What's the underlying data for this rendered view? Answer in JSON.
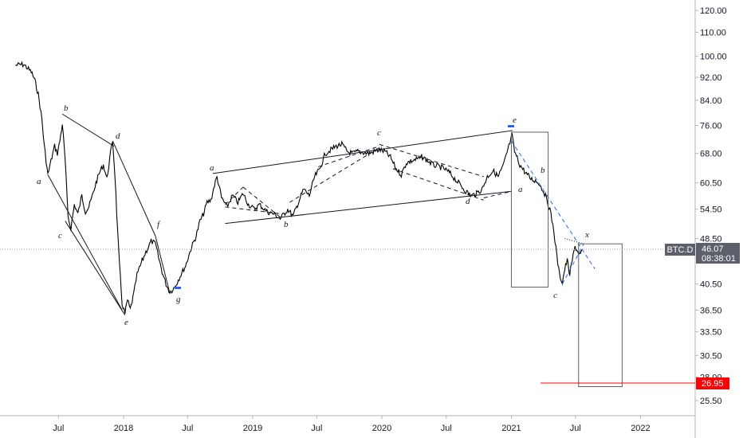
{
  "chart_data": {
    "type": "line",
    "symbol": "BTC.D",
    "y_scale": "log",
    "ylim": [
      23.5,
      128
    ],
    "y_ticks": [
      "120.00",
      "110.00",
      "100.00",
      "92.00",
      "84.00",
      "76.00",
      "68.00",
      "60.50",
      "54.50",
      "48.50",
      "40.50",
      "36.50",
      "33.50",
      "30.50",
      "28.00",
      "25.50"
    ],
    "x_ticks": [
      "Jul",
      "2018",
      "Jul",
      "2019",
      "Jul",
      "2020",
      "Jul",
      "2021",
      "Jul",
      "2022"
    ],
    "last_price": {
      "value": "46.07",
      "countdown": "08:38:01",
      "color": "#131722"
    },
    "target_price": {
      "value": "26.95",
      "color": "#ff0000"
    },
    "wave_labels": [
      "a",
      "b",
      "c",
      "d",
      "e",
      "f",
      "g",
      "a",
      "b",
      "c",
      "d",
      "e",
      "a",
      "b",
      "c",
      "x"
    ],
    "price_path": [
      [
        "2017-03-01",
        96.5
      ],
      [
        "2017-03-25",
        96.8
      ],
      [
        "2017-04-15",
        94.0
      ],
      [
        "2017-04-25",
        91.0
      ],
      [
        "2017-05-05",
        86.0
      ],
      [
        "2017-05-15",
        78.0
      ],
      [
        "2017-05-22",
        70.0
      ],
      [
        "2017-06-01",
        62.5
      ],
      [
        "2017-06-10",
        66.0
      ],
      [
        "2017-06-20",
        70.0
      ],
      [
        "2017-06-28",
        68.0
      ],
      [
        "2017-07-05",
        71.5
      ],
      [
        "2017-07-12",
        76.5
      ],
      [
        "2017-07-20",
        66.0
      ],
      [
        "2017-07-28",
        53.0
      ],
      [
        "2017-08-05",
        50.5
      ],
      [
        "2017-08-15",
        55.5
      ],
      [
        "2017-08-25",
        53.5
      ],
      [
        "2017-09-05",
        57.5
      ],
      [
        "2017-09-15",
        54.0
      ],
      [
        "2017-09-25",
        55.0
      ],
      [
        "2017-10-05",
        57.5
      ],
      [
        "2017-10-15",
        60.5
      ],
      [
        "2017-10-25",
        63.0
      ],
      [
        "2017-11-05",
        65.0
      ],
      [
        "2017-11-15",
        61.5
      ],
      [
        "2017-11-25",
        68.0
      ],
      [
        "2017-12-01",
        71.5
      ],
      [
        "2017-12-08",
        62.0
      ],
      [
        "2017-12-15",
        50.0
      ],
      [
        "2017-12-20",
        44.0
      ],
      [
        "2017-12-28",
        37.5
      ],
      [
        "2018-01-05",
        36.0
      ],
      [
        "2018-01-12",
        38.0
      ],
      [
        "2018-01-20",
        36.6
      ],
      [
        "2018-01-30",
        39.0
      ],
      [
        "2018-02-08",
        42.0
      ],
      [
        "2018-02-20",
        44.0
      ],
      [
        "2018-03-05",
        46.0
      ],
      [
        "2018-03-20",
        48.0
      ],
      [
        "2018-04-01",
        47.5
      ],
      [
        "2018-04-10",
        45.0
      ],
      [
        "2018-04-20",
        42.5
      ],
      [
        "2018-05-01",
        40.5
      ],
      [
        "2018-05-12",
        39.2
      ],
      [
        "2018-05-25",
        40.0
      ],
      [
        "2018-06-10",
        41.8
      ],
      [
        "2018-06-25",
        43.5
      ],
      [
        "2018-07-10",
        46.5
      ],
      [
        "2018-07-25",
        49.0
      ],
      [
        "2018-08-05",
        52.0
      ],
      [
        "2018-08-15",
        53.5
      ],
      [
        "2018-08-25",
        56.0
      ],
      [
        "2018-09-05",
        56.5
      ],
      [
        "2018-09-15",
        60.0
      ],
      [
        "2018-09-22",
        62.0
      ],
      [
        "2018-10-05",
        57.0
      ],
      [
        "2018-10-20",
        55.0
      ],
      [
        "2018-11-05",
        57.5
      ],
      [
        "2018-11-20",
        56.0
      ],
      [
        "2018-12-05",
        58.0
      ],
      [
        "2018-12-20",
        55.5
      ],
      [
        "2019-01-05",
        54.5
      ],
      [
        "2019-01-20",
        55.5
      ],
      [
        "2019-02-10",
        54.0
      ],
      [
        "2019-03-01",
        53.5
      ],
      [
        "2019-03-20",
        52.5
      ],
      [
        "2019-04-10",
        54.5
      ],
      [
        "2019-04-25",
        53.0
      ],
      [
        "2019-05-10",
        56.0
      ],
      [
        "2019-05-25",
        59.0
      ],
      [
        "2019-06-10",
        57.5
      ],
      [
        "2019-06-25",
        62.0
      ],
      [
        "2019-07-10",
        64.0
      ],
      [
        "2019-07-25",
        68.0
      ],
      [
        "2019-08-10",
        69.0
      ],
      [
        "2019-08-25",
        70.0
      ],
      [
        "2019-09-10",
        70.5
      ],
      [
        "2019-09-25",
        68.5
      ],
      [
        "2019-10-10",
        68.0
      ],
      [
        "2019-10-25",
        68.5
      ],
      [
        "2019-11-10",
        68.3
      ],
      [
        "2019-11-25",
        68.0
      ],
      [
        "2019-12-10",
        68.5
      ],
      [
        "2019-12-25",
        69.0
      ],
      [
        "2020-01-10",
        68.5
      ],
      [
        "2020-01-25",
        67.0
      ],
      [
        "2020-02-10",
        64.0
      ],
      [
        "2020-02-25",
        62.5
      ],
      [
        "2020-03-10",
        65.5
      ],
      [
        "2020-03-25",
        66.0
      ],
      [
        "2020-04-10",
        66.5
      ],
      [
        "2020-04-25",
        67.0
      ],
      [
        "2020-05-10",
        66.0
      ],
      [
        "2020-05-25",
        65.0
      ],
      [
        "2020-06-10",
        64.5
      ],
      [
        "2020-06-25",
        64.0
      ],
      [
        "2020-07-10",
        63.0
      ],
      [
        "2020-07-25",
        61.5
      ],
      [
        "2020-08-10",
        60.0
      ],
      [
        "2020-08-25",
        58.5
      ],
      [
        "2020-09-10",
        57.5
      ],
      [
        "2020-09-25",
        58.0
      ],
      [
        "2020-10-10",
        59.0
      ],
      [
        "2020-10-25",
        62.0
      ],
      [
        "2020-11-10",
        63.5
      ],
      [
        "2020-11-25",
        62.0
      ],
      [
        "2020-12-10",
        65.0
      ],
      [
        "2020-12-25",
        70.0
      ],
      [
        "2021-01-03",
        73.0
      ],
      [
        "2021-01-10",
        68.5
      ],
      [
        "2021-01-25",
        65.0
      ],
      [
        "2021-02-10",
        63.0
      ],
      [
        "2021-02-25",
        61.5
      ],
      [
        "2021-03-10",
        61.0
      ],
      [
        "2021-03-20",
        60.5
      ],
      [
        "2021-04-05",
        58.0
      ],
      [
        "2021-04-20",
        54.5
      ],
      [
        "2021-05-01",
        50.0
      ],
      [
        "2021-05-10",
        45.0
      ],
      [
        "2021-05-17",
        42.0
      ],
      [
        "2021-05-25",
        40.8
      ],
      [
        "2021-06-01",
        43.0
      ],
      [
        "2021-06-08",
        44.5
      ],
      [
        "2021-06-15",
        42.0
      ],
      [
        "2021-06-22",
        44.5
      ],
      [
        "2021-06-30",
        47.0
      ],
      [
        "2021-07-08",
        46.0
      ],
      [
        "2021-07-15",
        45.5
      ],
      [
        "2021-07-20",
        46.07
      ]
    ],
    "drawings": [
      {
        "type": "line",
        "from": [
          "2017-07-12",
          79.5
        ],
        "to": [
          "2017-12-05",
          70.0
        ]
      },
      {
        "type": "line",
        "from": [
          "2017-12-01",
          71.5
        ],
        "to": [
          "2018-04-01",
          49.0
        ]
      },
      {
        "type": "line",
        "from": [
          "2017-06-01",
          62.5
        ],
        "to": [
          "2017-12-28",
          36.5
        ]
      },
      {
        "type": "line",
        "from": [
          "2017-07-20",
          52.0
        ],
        "to": [
          "2018-01-05",
          35.8
        ]
      },
      {
        "type": "line",
        "from": [
          "2018-04-01",
          49.0
        ],
        "to": [
          "2018-05-12",
          39.0
        ]
      },
      {
        "type": "line",
        "from": [
          "2018-09-10",
          62.8
        ],
        "to": [
          "2021-01-05",
          74.5
        ]
      },
      {
        "type": "line",
        "from": [
          "2018-10-15",
          51.5
        ],
        "to": [
          "2021-01-01",
          58.5
        ]
      },
      {
        "type": "dashed",
        "from": [
          "2018-10-15",
          55.5
        ],
        "to": [
          "2018-12-05",
          59.5
        ]
      },
      {
        "type": "dashed",
        "from": [
          "2018-12-05",
          59.5
        ],
        "to": [
          "2019-03-25",
          52.5
        ]
      },
      {
        "type": "dashed",
        "from": [
          "2018-10-15",
          55.0
        ],
        "to": [
          "2019-03-25",
          53.5
        ]
      },
      {
        "type": "dashed",
        "from": [
          "2019-04-15",
          56.0
        ],
        "to": [
          "2020-01-01",
          70.0
        ]
      },
      {
        "type": "dashed",
        "from": [
          "2019-07-05",
          64.5
        ],
        "to": [
          "2019-12-25",
          70.0
        ]
      },
      {
        "type": "dashed",
        "from": [
          "2019-12-25",
          70.5
        ],
        "to": [
          "2020-10-15",
          62.0
        ]
      },
      {
        "type": "dashed",
        "from": [
          "2020-02-01",
          64.0
        ],
        "to": [
          "2020-10-15",
          56.5
        ]
      },
      {
        "type": "dashed",
        "from": [
          "2020-10-15",
          57.0
        ],
        "to": [
          "2021-01-01",
          58.5
        ]
      },
      {
        "type": "dashed-blue",
        "from": [
          "2021-01-01",
          71.5
        ],
        "to": [
          "2021-08-25",
          43.0
        ]
      },
      {
        "type": "dashed-blue",
        "from": [
          "2021-05-25",
          40.5
        ],
        "to": [
          "2021-07-25",
          47.5
        ]
      },
      {
        "type": "dotted",
        "from": [
          "2021-06-01",
          48.5
        ],
        "to": [
          "2021-07-25",
          47.5
        ]
      },
      {
        "type": "box",
        "from": [
          "2021-01-01",
          74.0
        ],
        "to": [
          "2021-04-15",
          40.0
        ]
      },
      {
        "type": "box",
        "from": [
          "2021-07-10",
          47.5
        ],
        "to": [
          "2021-11-10",
          26.95
        ]
      }
    ]
  }
}
